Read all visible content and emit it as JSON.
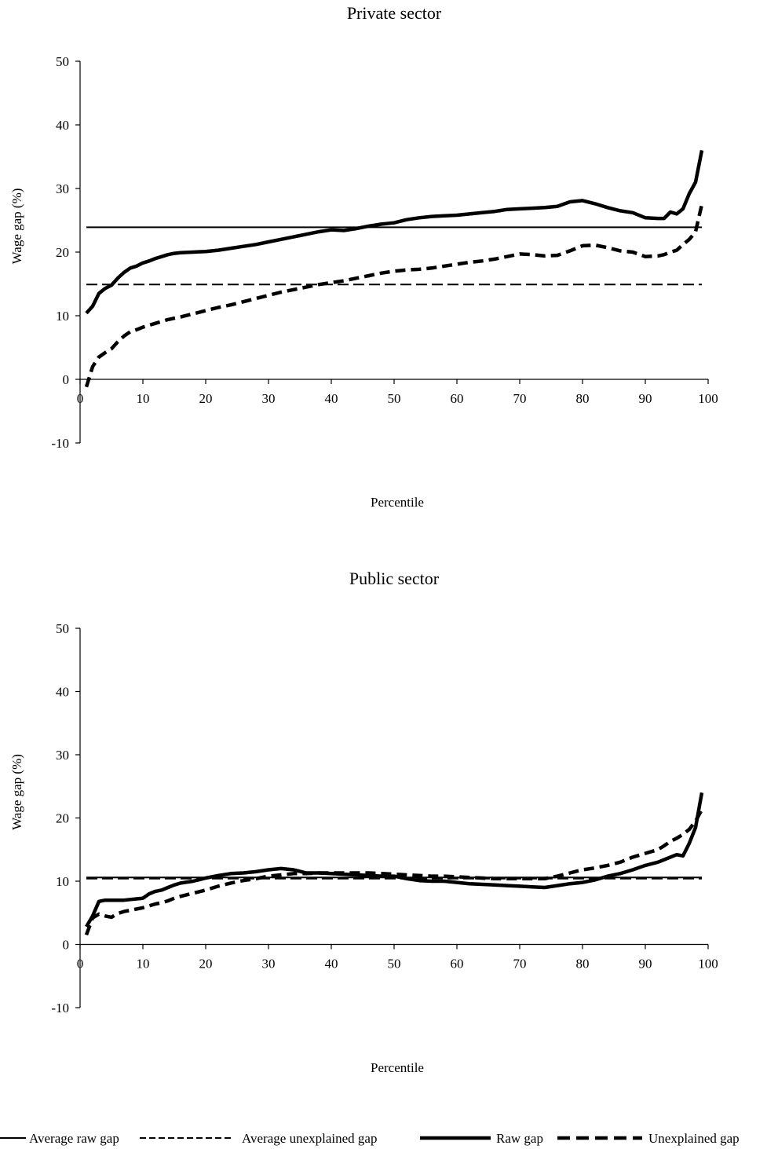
{
  "chart_data": [
    {
      "type": "line",
      "title": "Private sector",
      "xlabel": "Percentile",
      "ylabel": "Wage gap (%)",
      "xlim": [
        0,
        100
      ],
      "ylim": [
        -10,
        50
      ],
      "xticks": [
        0,
        10,
        20,
        30,
        40,
        50,
        60,
        70,
        80,
        90,
        100
      ],
      "yticks": [
        -10,
        0,
        10,
        20,
        30,
        40,
        50
      ],
      "grid": false,
      "series": [
        {
          "name": "Average raw gap",
          "x": [
            1,
            99
          ],
          "y": [
            23.9,
            23.9
          ]
        },
        {
          "name": "Average unexplained gap",
          "x": [
            1,
            99
          ],
          "y": [
            14.9,
            14.9
          ]
        },
        {
          "name": "Raw gap",
          "x": [
            1,
            2,
            3,
            4,
            5,
            6,
            7,
            8,
            9,
            10,
            11,
            12,
            13,
            14,
            15,
            16,
            18,
            20,
            22,
            24,
            26,
            28,
            30,
            32,
            34,
            36,
            38,
            40,
            42,
            44,
            46,
            48,
            50,
            52,
            54,
            56,
            58,
            60,
            62,
            64,
            66,
            68,
            70,
            72,
            74,
            76,
            78,
            80,
            82,
            84,
            86,
            88,
            90,
            92,
            93,
            94,
            95,
            96,
            97,
            98,
            99
          ],
          "y": [
            10.4,
            11.5,
            13.5,
            14.3,
            14.8,
            15.9,
            16.8,
            17.5,
            17.8,
            18.3,
            18.6,
            19.0,
            19.3,
            19.6,
            19.8,
            19.9,
            20.0,
            20.1,
            20.3,
            20.6,
            20.9,
            21.2,
            21.6,
            22.0,
            22.4,
            22.8,
            23.2,
            23.5,
            23.4,
            23.7,
            24.1,
            24.4,
            24.6,
            25.1,
            25.4,
            25.6,
            25.7,
            25.8,
            26.0,
            26.2,
            26.4,
            26.7,
            26.8,
            26.9,
            27.0,
            27.2,
            27.9,
            28.1,
            27.6,
            27.0,
            26.5,
            26.2,
            25.4,
            25.3,
            25.3,
            26.3,
            26.0,
            26.8,
            29.2,
            31.0,
            36.0
          ]
        },
        {
          "name": "Unexplained gap",
          "x": [
            1,
            2,
            3,
            4,
            5,
            6,
            7,
            8,
            9,
            10,
            11,
            12,
            13,
            14,
            15,
            16,
            18,
            20,
            22,
            24,
            26,
            28,
            30,
            32,
            34,
            36,
            38,
            40,
            42,
            44,
            46,
            48,
            50,
            52,
            54,
            56,
            58,
            60,
            62,
            64,
            66,
            68,
            70,
            72,
            74,
            76,
            78,
            80,
            82,
            84,
            86,
            88,
            90,
            92,
            93,
            94,
            95,
            96,
            97,
            98,
            99
          ],
          "y": [
            -1.2,
            2.0,
            3.5,
            4.2,
            4.8,
            5.9,
            6.8,
            7.5,
            7.8,
            8.2,
            8.5,
            8.8,
            9.1,
            9.4,
            9.6,
            9.8,
            10.3,
            10.8,
            11.3,
            11.7,
            12.2,
            12.7,
            13.2,
            13.7,
            14.1,
            14.5,
            14.9,
            15.2,
            15.5,
            15.9,
            16.3,
            16.7,
            17.0,
            17.2,
            17.3,
            17.5,
            17.8,
            18.1,
            18.4,
            18.6,
            18.9,
            19.3,
            19.7,
            19.6,
            19.4,
            19.5,
            20.2,
            21.0,
            21.1,
            20.7,
            20.2,
            20.0,
            19.3,
            19.4,
            19.6,
            20.0,
            20.3,
            21.2,
            22.0,
            23.2,
            27.5
          ]
        }
      ]
    },
    {
      "type": "line",
      "title": "Public sector",
      "xlabel": "Percentile",
      "ylabel": "Wage gap (%)",
      "xlim": [
        0,
        100
      ],
      "ylim": [
        -10,
        50
      ],
      "xticks": [
        0,
        10,
        20,
        30,
        40,
        50,
        60,
        70,
        80,
        90,
        100
      ],
      "yticks": [
        -10,
        0,
        10,
        20,
        30,
        40,
        50
      ],
      "grid": false,
      "series": [
        {
          "name": "Average raw gap",
          "x": [
            1,
            99
          ],
          "y": [
            10.6,
            10.6
          ]
        },
        {
          "name": "Average unexplained gap",
          "x": [
            1,
            99
          ],
          "y": [
            10.4,
            10.4
          ]
        },
        {
          "name": "Raw gap",
          "x": [
            1,
            2,
            3,
            4,
            5,
            6,
            7,
            8,
            9,
            10,
            11,
            12,
            13,
            14,
            15,
            16,
            18,
            20,
            22,
            24,
            26,
            28,
            30,
            32,
            34,
            36,
            38,
            40,
            42,
            44,
            46,
            48,
            50,
            52,
            54,
            56,
            58,
            60,
            62,
            64,
            66,
            68,
            70,
            72,
            74,
            76,
            78,
            80,
            82,
            84,
            86,
            88,
            90,
            92,
            93,
            94,
            95,
            96,
            97,
            98,
            99
          ],
          "y": [
            2.8,
            4.5,
            6.8,
            7.0,
            7.0,
            7.0,
            7.0,
            7.1,
            7.2,
            7.3,
            8.0,
            8.4,
            8.6,
            9.0,
            9.4,
            9.7,
            10.0,
            10.5,
            10.9,
            11.2,
            11.3,
            11.5,
            11.8,
            12.0,
            11.8,
            11.3,
            11.3,
            11.2,
            11.1,
            11.0,
            10.9,
            10.8,
            10.8,
            10.4,
            10.1,
            10.0,
            10.0,
            9.8,
            9.6,
            9.5,
            9.4,
            9.3,
            9.2,
            9.1,
            9.0,
            9.3,
            9.6,
            9.8,
            10.2,
            10.8,
            11.2,
            11.8,
            12.5,
            13.0,
            13.4,
            13.8,
            14.2,
            14.0,
            16.0,
            18.5,
            24.0
          ]
        },
        {
          "name": "Unexplained gap",
          "x": [
            1,
            2,
            3,
            4,
            5,
            6,
            7,
            8,
            9,
            10,
            11,
            12,
            13,
            14,
            15,
            16,
            18,
            20,
            22,
            24,
            26,
            28,
            30,
            32,
            34,
            36,
            38,
            40,
            42,
            44,
            46,
            48,
            50,
            52,
            54,
            56,
            58,
            60,
            62,
            64,
            66,
            68,
            70,
            72,
            74,
            76,
            78,
            80,
            82,
            84,
            86,
            88,
            90,
            92,
            93,
            94,
            95,
            96,
            97,
            98,
            99
          ],
          "y": [
            1.5,
            4.2,
            4.8,
            4.5,
            4.3,
            4.9,
            5.2,
            5.4,
            5.6,
            5.8,
            6.1,
            6.4,
            6.6,
            6.9,
            7.3,
            7.6,
            8.1,
            8.6,
            9.2,
            9.7,
            10.1,
            10.4,
            10.8,
            11.0,
            11.2,
            11.2,
            11.3,
            11.3,
            11.3,
            11.3,
            11.3,
            11.2,
            11.1,
            11.0,
            10.9,
            10.8,
            10.8,
            10.7,
            10.6,
            10.5,
            10.4,
            10.4,
            10.4,
            10.4,
            10.4,
            10.8,
            11.3,
            11.8,
            12.1,
            12.5,
            13.0,
            13.8,
            14.4,
            15.0,
            15.6,
            16.3,
            16.8,
            17.4,
            18.2,
            19.5,
            21.3
          ]
        }
      ]
    }
  ],
  "legend": {
    "placement": "bottom",
    "items": [
      {
        "label": "Average raw gap",
        "style": "thin-solid"
      },
      {
        "label": "Average unexplained gap",
        "style": "thin-dashed"
      },
      {
        "label": "Raw gap",
        "style": "thick-solid"
      },
      {
        "label": "Unexplained gap",
        "style": "thick-dashed"
      }
    ]
  }
}
